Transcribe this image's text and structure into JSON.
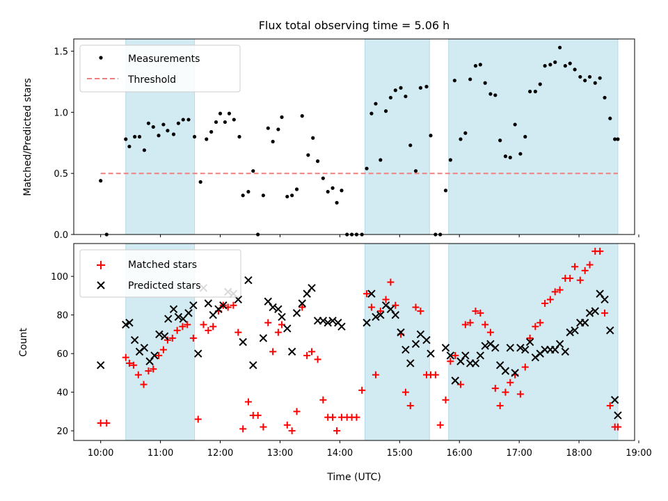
{
  "chart_data": [
    {
      "type": "scatter",
      "title": "Flux total observing time = 5.06 h",
      "xlabel": "",
      "ylabel": "Matched/Predicted stars",
      "ylim": [
        0,
        1.6
      ],
      "yticks": [
        "0.0",
        "0.5",
        "1.0",
        "1.5"
      ],
      "ytick_values": [
        0,
        0.5,
        1.0,
        1.5
      ],
      "xlim_hours": [
        9.55,
        18.93
      ],
      "legend_position": "top-left",
      "shaded_intervals_hours": [
        [
          10.42,
          11.57
        ],
        [
          14.42,
          15.5
        ],
        [
          15.82,
          18.65
        ]
      ],
      "shade_color": "#add8e6",
      "series": [
        {
          "name": "Measurements",
          "marker": "dot",
          "color": "#000000",
          "x_hours": [
            10.0,
            10.1,
            10.42,
            10.48,
            10.57,
            10.65,
            10.73,
            10.8,
            10.88,
            10.97,
            11.05,
            11.12,
            11.22,
            11.3,
            11.38,
            11.47,
            11.57,
            11.67,
            11.77,
            11.85,
            11.93,
            12.0,
            12.08,
            12.15,
            12.23,
            12.32,
            12.38,
            12.47,
            12.55,
            12.63,
            12.72,
            12.8,
            12.88,
            12.97,
            13.03,
            13.12,
            13.2,
            13.28,
            13.37,
            13.47,
            13.55,
            13.63,
            13.72,
            13.8,
            13.88,
            13.95,
            14.03,
            14.12,
            14.2,
            14.28,
            14.37,
            14.45,
            14.53,
            14.6,
            14.68,
            14.77,
            14.85,
            14.93,
            15.02,
            15.1,
            15.18,
            15.27,
            15.35,
            15.45,
            15.52,
            15.6,
            15.68,
            15.77,
            15.85,
            15.92,
            16.02,
            16.1,
            16.18,
            16.27,
            16.35,
            16.43,
            16.52,
            16.6,
            16.68,
            16.77,
            16.85,
            16.93,
            17.02,
            17.1,
            17.18,
            17.27,
            17.35,
            17.43,
            17.52,
            17.6,
            17.68,
            17.77,
            17.85,
            17.93,
            18.02,
            18.1,
            18.18,
            18.27,
            18.35,
            18.43,
            18.52,
            18.6,
            18.65
          ],
          "values": [
            0.44,
            0.0,
            0.78,
            0.72,
            0.8,
            0.8,
            0.69,
            0.91,
            0.88,
            0.81,
            0.9,
            0.85,
            0.82,
            0.91,
            0.94,
            0.94,
            0.8,
            0.43,
            0.78,
            0.84,
            0.92,
            0.99,
            0.92,
            0.99,
            0.94,
            0.8,
            0.32,
            0.35,
            0.52,
            0.0,
            0.32,
            0.87,
            0.76,
            0.86,
            0.96,
            0.31,
            0.32,
            0.37,
            0.97,
            0.65,
            0.79,
            0.6,
            0.46,
            0.35,
            0.38,
            0.26,
            0.36,
            0.0,
            0.0,
            0.0,
            0.0,
            0.54,
            0.99,
            1.07,
            0.61,
            1.01,
            1.12,
            1.18,
            1.2,
            1.13,
            0.73,
            0.52,
            1.2,
            1.21,
            0.81,
            0.0,
            0.0,
            0.36,
            0.61,
            1.26,
            0.78,
            0.83,
            1.27,
            1.38,
            1.39,
            1.24,
            1.15,
            1.14,
            0.77,
            0.64,
            0.63,
            0.9,
            0.66,
            0.8,
            1.17,
            1.17,
            1.23,
            1.38,
            1.39,
            1.41,
            1.53,
            1.38,
            1.4,
            1.35,
            1.29,
            1.26,
            1.29,
            1.24,
            1.28,
            1.12,
            0.95,
            0.78,
            0.78
          ]
        },
        {
          "name": "Threshold",
          "line": "dashed",
          "color": "#f08080",
          "x_hours": [
            10.0,
            18.65
          ],
          "values": [
            0.5,
            0.5
          ]
        }
      ]
    },
    {
      "type": "scatter",
      "title": "",
      "xlabel": "Time (UTC)",
      "ylabel": "Count",
      "ylim": [
        15,
        117
      ],
      "yticks": [
        "20",
        "40",
        "60",
        "80",
        "100"
      ],
      "ytick_values": [
        20,
        40,
        60,
        80,
        100
      ],
      "xticks": [
        "10:00",
        "11:00",
        "12:00",
        "13:00",
        "14:00",
        "15:00",
        "16:00",
        "17:00",
        "18:00",
        "19:00"
      ],
      "xtick_values": [
        10,
        11,
        12,
        13,
        14,
        15,
        16,
        17,
        18,
        19
      ],
      "xlim_hours": [
        9.55,
        18.93
      ],
      "legend_position": "top-left",
      "shaded_intervals_hours": [
        [
          10.42,
          11.57
        ],
        [
          14.42,
          15.5
        ],
        [
          15.82,
          18.65
        ]
      ],
      "shade_color": "#add8e6",
      "series": [
        {
          "name": "Matched stars",
          "marker": "plus",
          "color": "#ff0000",
          "x_hours": [
            10.0,
            10.1,
            10.42,
            10.48,
            10.55,
            10.63,
            10.72,
            10.8,
            10.88,
            10.97,
            11.05,
            11.12,
            11.2,
            11.28,
            11.37,
            11.45,
            11.55,
            11.63,
            11.72,
            11.8,
            11.88,
            11.97,
            12.05,
            12.13,
            12.22,
            12.3,
            12.38,
            12.47,
            12.55,
            12.63,
            12.72,
            12.8,
            12.88,
            12.97,
            13.03,
            13.12,
            13.2,
            13.28,
            13.37,
            13.45,
            13.53,
            13.63,
            13.72,
            13.8,
            13.88,
            13.95,
            14.03,
            14.12,
            14.2,
            14.28,
            14.37,
            14.45,
            14.53,
            14.6,
            14.68,
            14.77,
            14.85,
            14.93,
            15.02,
            15.1,
            15.18,
            15.27,
            15.35,
            15.45,
            15.52,
            15.6,
            15.68,
            15.77,
            15.85,
            15.93,
            16.02,
            16.1,
            16.18,
            16.27,
            16.35,
            16.43,
            16.52,
            16.6,
            16.68,
            16.77,
            16.85,
            16.93,
            17.02,
            17.1,
            17.18,
            17.27,
            17.35,
            17.43,
            17.52,
            17.6,
            17.68,
            17.77,
            17.85,
            17.93,
            18.02,
            18.1,
            18.18,
            18.27,
            18.35,
            18.43,
            18.52,
            18.6,
            18.65
          ],
          "values": [
            24,
            24,
            58,
            55,
            54,
            49,
            44,
            51,
            52,
            59,
            62,
            67,
            68,
            72,
            74,
            75,
            68,
            26,
            75,
            72,
            74,
            82,
            85,
            84,
            85,
            71,
            21,
            35,
            28,
            28,
            22,
            76,
            61,
            71,
            75,
            23,
            20,
            30,
            84,
            59,
            61,
            57,
            36,
            27,
            27,
            20,
            27,
            27,
            27,
            27,
            41,
            91,
            84,
            49,
            82,
            88,
            97,
            85,
            70,
            40,
            33,
            84,
            82,
            49,
            49,
            49,
            23,
            36,
            56,
            59,
            44,
            75,
            76,
            82,
            81,
            75,
            71,
            42,
            33,
            40,
            45,
            49,
            39,
            53,
            68,
            74,
            76,
            86,
            88,
            92,
            93,
            99,
            99,
            105,
            98,
            103,
            106,
            113,
            113,
            81,
            33,
            22,
            22
          ]
        },
        {
          "name": "Predicted stars",
          "marker": "x",
          "color": "#000000",
          "x_hours": [
            10.0,
            10.42,
            10.48,
            10.57,
            10.65,
            10.73,
            10.82,
            10.9,
            10.98,
            11.07,
            11.13,
            11.22,
            11.3,
            11.38,
            11.47,
            11.55,
            11.63,
            11.72,
            11.8,
            11.88,
            11.97,
            12.05,
            12.13,
            12.22,
            12.3,
            12.38,
            12.47,
            12.55,
            12.72,
            12.8,
            12.88,
            12.97,
            13.03,
            13.12,
            13.2,
            13.28,
            13.37,
            13.45,
            13.53,
            13.63,
            13.72,
            13.8,
            13.88,
            13.97,
            14.03,
            14.12,
            14.2,
            14.28,
            14.37,
            14.45,
            14.53,
            14.6,
            14.68,
            14.77,
            14.85,
            14.93,
            15.02,
            15.1,
            15.18,
            15.27,
            15.35,
            15.45,
            15.52,
            15.6,
            15.68,
            15.77,
            15.85,
            15.93,
            16.02,
            16.1,
            16.18,
            16.27,
            16.35,
            16.43,
            16.52,
            16.6,
            16.68,
            16.77,
            16.85,
            16.93,
            17.02,
            17.1,
            17.18,
            17.27,
            17.35,
            17.43,
            17.52,
            17.6,
            17.68,
            17.77,
            17.85,
            17.93,
            18.02,
            18.1,
            18.18,
            18.27,
            18.35,
            18.43,
            18.52,
            18.6,
            18.65
          ],
          "values": [
            54,
            75,
            76,
            67,
            61,
            63,
            56,
            59,
            70,
            69,
            78,
            83,
            79,
            78,
            81,
            85,
            60,
            94,
            86,
            80,
            83,
            85,
            92,
            91,
            88,
            66,
            98,
            54,
            68,
            87,
            84,
            83,
            79,
            73,
            61,
            81,
            86,
            91,
            94,
            77,
            77,
            76,
            77,
            76,
            74,
            null,
            null,
            null,
            null,
            76,
            91,
            79,
            80,
            85,
            83,
            80,
            71,
            62,
            55,
            65,
            70,
            67,
            60,
            null,
            null,
            63,
            59,
            46,
            56,
            59,
            55,
            55,
            59,
            64,
            65,
            63,
            54,
            51,
            63,
            50,
            63,
            62,
            66,
            58,
            60,
            62,
            62,
            62,
            65,
            61,
            71,
            72,
            76,
            76,
            81,
            82,
            91,
            88,
            72,
            36,
            28
          ]
        }
      ]
    }
  ]
}
